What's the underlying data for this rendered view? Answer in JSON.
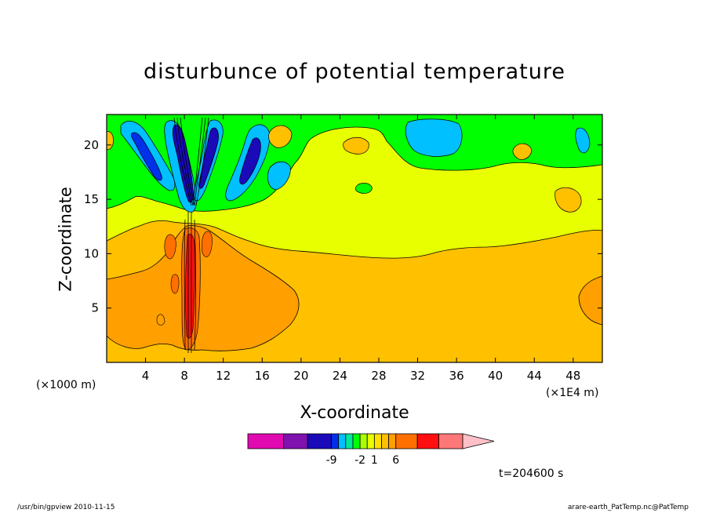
{
  "chart_data": {
    "type": "heatmap",
    "title": "disturbunce of potential temperature",
    "xlabel": "X-coordinate",
    "ylabel": "Z-coordinate",
    "x_unit_left": "(×1000 m)",
    "x_unit_right": "(×1E4 m)",
    "xlim": [
      0,
      51
    ],
    "ylim": [
      0,
      22.8
    ],
    "x_ticks": [
      4,
      8,
      12,
      16,
      20,
      24,
      28,
      32,
      36,
      40,
      44,
      48
    ],
    "y_ticks": [
      5,
      10,
      15,
      20
    ],
    "colorbar": {
      "colors": [
        "#e00ab0",
        "#8012b0",
        "#1a0ab8",
        "#0030e8",
        "#00c0ff",
        "#00e89a",
        "#00ff00",
        "#a8ff00",
        "#e8ff00",
        "#ffe000",
        "#ffc000",
        "#ff9f00",
        "#ff7000",
        "#ff0f0f",
        "#ff7878",
        "#ffc0c8"
      ],
      "tick_labels": [
        {
          "label": "-9",
          "index": 2
        },
        {
          "label": "-2",
          "index": 6
        },
        {
          "label": "1",
          "index": 8
        },
        {
          "label": "6",
          "index": 11
        }
      ]
    },
    "time_label": "t=204600 s",
    "regions": [
      {
        "level": "0 to 1",
        "color": "#e8ff00",
        "desc": "upper-middle layer z≈10–16"
      },
      {
        "level": "1 to 2",
        "color": "#ffc000",
        "desc": "lower layer z≈2–11"
      },
      {
        "level": "2 to 3",
        "color": "#ff9f00",
        "desc": "near surface x<20 and x≈49–51"
      },
      {
        "level": "-1 to 0",
        "color": "#00ff00",
        "desc": "top layer z≈16–22.8"
      },
      {
        "level": "-2 to -1",
        "color": "#00e89a",
        "desc": "cells at top"
      },
      {
        "level": "<= -3",
        "color": "#1a0ab8",
        "desc": "plume near x≈8–10"
      }
    ]
  },
  "footer": {
    "left": "/usr/bin/gpview   2010-11-15",
    "right": "arare-earth_PatTemp.nc@PatTemp"
  }
}
